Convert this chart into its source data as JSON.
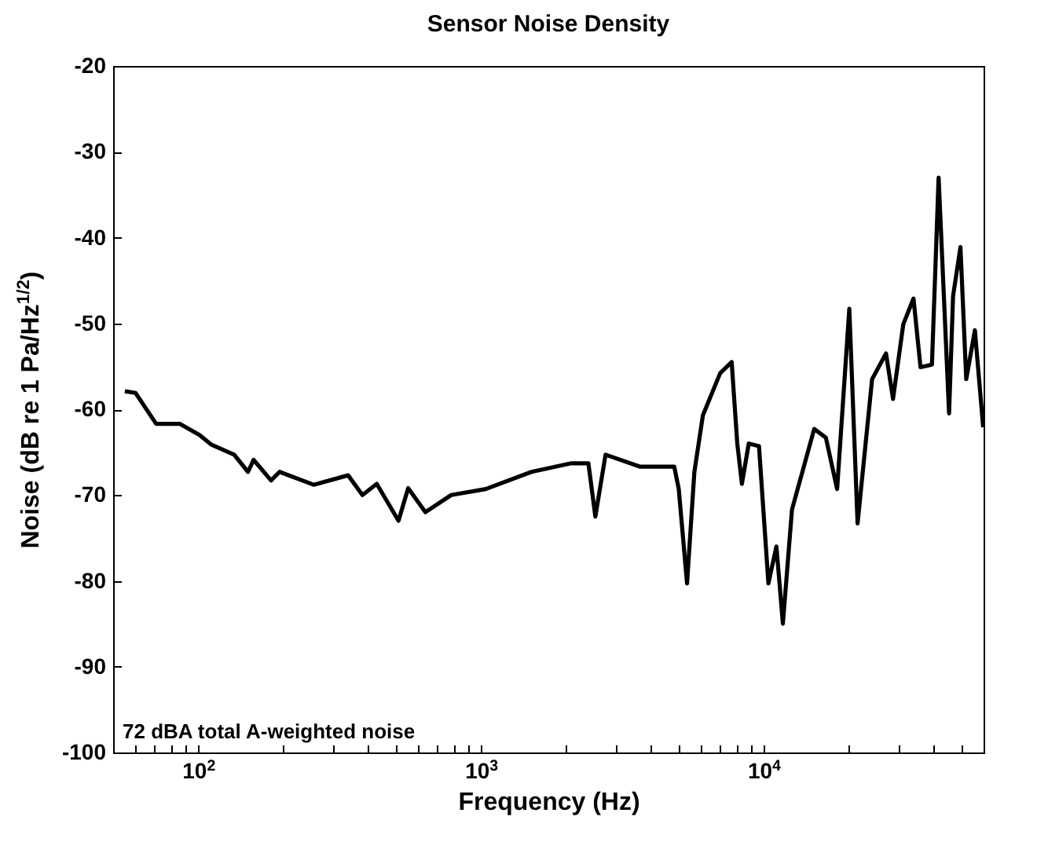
{
  "chart_data": {
    "type": "line",
    "title": "Sensor Noise Density",
    "xlabel": "Frequency (Hz)",
    "ylabel": "Noise (dB re 1 Pa/Hz$^{1/2}$)",
    "log": "x",
    "grid": false,
    "marker": "none",
    "line_style": "solid",
    "annotations": [
      "72 dBA total A-weighted noise"
    ],
    "xlim": [
      50,
      60000
    ],
    "ylim": [
      -100,
      -20
    ],
    "xticks": [
      {
        "value": 60,
        "label": null
      },
      {
        "value": 70,
        "label": null
      },
      {
        "value": 80,
        "label": null
      },
      {
        "value": 90,
        "label": null
      },
      {
        "value": 100,
        "label": "10$^{2}$"
      },
      {
        "value": 200,
        "label": null
      },
      {
        "value": 300,
        "label": null
      },
      {
        "value": 400,
        "label": null
      },
      {
        "value": 500,
        "label": null
      },
      {
        "value": 600,
        "label": null
      },
      {
        "value": 700,
        "label": null
      },
      {
        "value": 800,
        "label": null
      },
      {
        "value": 900,
        "label": null
      },
      {
        "value": 1000,
        "label": "10$^{3}$"
      },
      {
        "value": 2000,
        "label": null
      },
      {
        "value": 3000,
        "label": null
      },
      {
        "value": 4000,
        "label": null
      },
      {
        "value": 5000,
        "label": null
      },
      {
        "value": 6000,
        "label": null
      },
      {
        "value": 7000,
        "label": null
      },
      {
        "value": 8000,
        "label": null
      },
      {
        "value": 9000,
        "label": null
      },
      {
        "value": 10000,
        "label": "10$^{4}$"
      },
      {
        "value": 20000,
        "label": null
      },
      {
        "value": 30000,
        "label": null
      },
      {
        "value": 40000,
        "label": null
      },
      {
        "value": 50000,
        "label": null
      }
    ],
    "yticks": [
      -100,
      -90,
      -80,
      -70,
      -60,
      -50,
      -40,
      -30,
      -20
    ],
    "series": [
      {
        "color": "#000000",
        "x": [
          55,
          60,
          71,
          86,
          101,
          111,
          134,
          150,
          157,
          181,
          194,
          256,
          339,
          381,
          428,
          511,
          553,
          636,
          785,
          1040,
          1510,
          2090,
          2400,
          2540,
          2760,
          3660,
          4830,
          5010,
          5360,
          5690,
          6100,
          7020,
          7710,
          8070,
          8380,
          8860,
          9630,
          10400,
          11100,
          11700,
          12600,
          15100,
          16600,
          18200,
          20100,
          21500,
          24200,
          27100,
          28700,
          31200,
          33900,
          35900,
          39400,
          41600,
          45300,
          46800,
          49700,
          52100,
          55900,
          59800
        ],
        "values": [
          -57.9,
          -58.1,
          -61.7,
          -61.7,
          -63,
          -64.1,
          -65.3,
          -67.3,
          -65.9,
          -68.3,
          -67.3,
          -68.8,
          -67.7,
          -70,
          -68.7,
          -73,
          -69.2,
          -72,
          -70,
          -69.3,
          -67.3,
          -66.3,
          -66.3,
          -72.5,
          -65.3,
          -66.7,
          -66.7,
          -69.3,
          -80.3,
          -67.3,
          -60.7,
          -55.8,
          -54.5,
          -64,
          -68.7,
          -64,
          -64.3,
          -80.3,
          -76,
          -85,
          -71.7,
          -62.3,
          -63.3,
          -69.3,
          -48.3,
          -73.3,
          -56.5,
          -53.5,
          -58.8,
          -50.1,
          -47.1,
          -55.1,
          -54.8,
          -33,
          -60.5,
          -46.8,
          -41.1,
          -56.5,
          -50.8,
          -62.1
        ]
      }
    ]
  }
}
